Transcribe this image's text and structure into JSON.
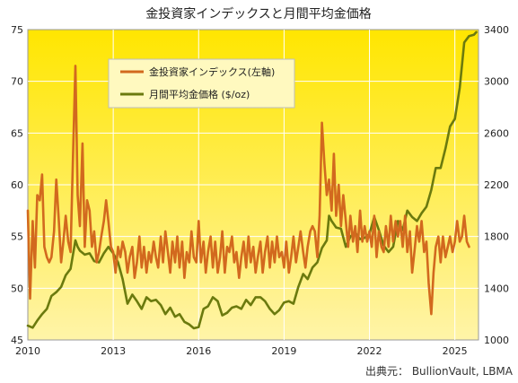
{
  "chart_data": {
    "type": "line",
    "title": "金投資家インデックスと月間平均金価格",
    "source": "出典元：  BullionVault, LBMA",
    "x_range": [
      2010.0,
      2025.83
    ],
    "x_ticks": [
      2010,
      2013,
      2016,
      2019,
      2022,
      2025
    ],
    "ylim_left": [
      45,
      75
    ],
    "yticks_left": [
      45,
      50,
      55,
      60,
      65,
      70,
      75
    ],
    "ylim_right": [
      1000,
      3400
    ],
    "yticks_right": [
      1000,
      1400,
      1800,
      2200,
      2600,
      3000,
      3400
    ],
    "legend_position": "top-left (inside)",
    "grid": true,
    "colors": {
      "index": "#D2691E",
      "gold": "#6B7A0E",
      "background_top": "#FFE800",
      "background_bottom": "#FFF2A0"
    },
    "series": [
      {
        "name": "金投資家インデックス(左軸)",
        "axis": "left",
        "points": [
          [
            2010.0,
            57.5
          ],
          [
            2010.08,
            49.0
          ],
          [
            2010.17,
            56.5
          ],
          [
            2010.25,
            52.0
          ],
          [
            2010.33,
            59.0
          ],
          [
            2010.42,
            58.5
          ],
          [
            2010.5,
            61.0
          ],
          [
            2010.58,
            54.0
          ],
          [
            2010.67,
            53.0
          ],
          [
            2010.75,
            52.5
          ],
          [
            2010.83,
            53.0
          ],
          [
            2010.92,
            55.5
          ],
          [
            2011.0,
            60.5
          ],
          [
            2011.08,
            57.0
          ],
          [
            2011.17,
            52.5
          ],
          [
            2011.25,
            54.5
          ],
          [
            2011.33,
            57.0
          ],
          [
            2011.42,
            54.5
          ],
          [
            2011.5,
            53.5
          ],
          [
            2011.58,
            62.0
          ],
          [
            2011.67,
            71.5
          ],
          [
            2011.75,
            59.0
          ],
          [
            2011.83,
            56.0
          ],
          [
            2011.92,
            64.0
          ],
          [
            2012.0,
            54.0
          ],
          [
            2012.08,
            58.5
          ],
          [
            2012.17,
            57.5
          ],
          [
            2012.25,
            54.0
          ],
          [
            2012.33,
            55.5
          ],
          [
            2012.42,
            52.5
          ],
          [
            2012.5,
            53.5
          ],
          [
            2012.58,
            55.0
          ],
          [
            2012.67,
            56.5
          ],
          [
            2012.75,
            58.5
          ],
          [
            2012.83,
            56.5
          ],
          [
            2012.92,
            54.0
          ],
          [
            2013.0,
            53.5
          ],
          [
            2013.08,
            51.5
          ],
          [
            2013.17,
            54.0
          ],
          [
            2013.25,
            53.0
          ],
          [
            2013.33,
            54.5
          ],
          [
            2013.42,
            53.5
          ],
          [
            2013.5,
            51.5
          ],
          [
            2013.58,
            53.0
          ],
          [
            2013.67,
            54.0
          ],
          [
            2013.75,
            51.0
          ],
          [
            2013.83,
            52.5
          ],
          [
            2013.92,
            55.0
          ],
          [
            2014.0,
            52.0
          ],
          [
            2014.08,
            54.0
          ],
          [
            2014.17,
            51.5
          ],
          [
            2014.25,
            53.5
          ],
          [
            2014.33,
            52.5
          ],
          [
            2014.42,
            54.5
          ],
          [
            2014.5,
            53.0
          ],
          [
            2014.58,
            52.0
          ],
          [
            2014.67,
            55.0
          ],
          [
            2014.75,
            52.5
          ],
          [
            2014.83,
            55.5
          ],
          [
            2014.92,
            53.5
          ],
          [
            2015.0,
            51.5
          ],
          [
            2015.08,
            54.5
          ],
          [
            2015.17,
            52.5
          ],
          [
            2015.25,
            55.0
          ],
          [
            2015.33,
            52.0
          ],
          [
            2015.42,
            54.5
          ],
          [
            2015.5,
            51.0
          ],
          [
            2015.58,
            53.5
          ],
          [
            2015.67,
            52.5
          ],
          [
            2015.75,
            55.5
          ],
          [
            2015.83,
            53.0
          ],
          [
            2015.92,
            52.5
          ],
          [
            2016.0,
            56.5
          ],
          [
            2016.08,
            52.5
          ],
          [
            2016.17,
            54.5
          ],
          [
            2016.25,
            51.5
          ],
          [
            2016.33,
            53.5
          ],
          [
            2016.42,
            55.0
          ],
          [
            2016.5,
            52.0
          ],
          [
            2016.58,
            54.5
          ],
          [
            2016.67,
            51.5
          ],
          [
            2016.75,
            53.0
          ],
          [
            2016.83,
            55.5
          ],
          [
            2016.92,
            51.5
          ],
          [
            2017.0,
            54.0
          ],
          [
            2017.08,
            53.5
          ],
          [
            2017.17,
            55.0
          ],
          [
            2017.25,
            52.5
          ],
          [
            2017.33,
            53.5
          ],
          [
            2017.42,
            51.0
          ],
          [
            2017.5,
            53.0
          ],
          [
            2017.58,
            54.5
          ],
          [
            2017.67,
            52.0
          ],
          [
            2017.75,
            55.0
          ],
          [
            2017.83,
            52.5
          ],
          [
            2017.92,
            54.0
          ],
          [
            2018.0,
            51.5
          ],
          [
            2018.08,
            53.0
          ],
          [
            2018.17,
            54.5
          ],
          [
            2018.25,
            51.5
          ],
          [
            2018.33,
            53.5
          ],
          [
            2018.42,
            55.0
          ],
          [
            2018.5,
            52.0
          ],
          [
            2018.58,
            54.5
          ],
          [
            2018.67,
            52.5
          ],
          [
            2018.75,
            55.0
          ],
          [
            2018.83,
            53.0
          ],
          [
            2018.92,
            53.5
          ],
          [
            2019.0,
            52.0
          ],
          [
            2019.08,
            54.5
          ],
          [
            2019.17,
            51.5
          ],
          [
            2019.25,
            53.0
          ],
          [
            2019.33,
            55.0
          ],
          [
            2019.42,
            52.5
          ],
          [
            2019.5,
            54.0
          ],
          [
            2019.58,
            55.5
          ],
          [
            2019.67,
            53.5
          ],
          [
            2019.75,
            52.0
          ],
          [
            2019.83,
            54.0
          ],
          [
            2019.92,
            55.5
          ],
          [
            2020.0,
            56.0
          ],
          [
            2020.08,
            55.5
          ],
          [
            2020.17,
            53.0
          ],
          [
            2020.25,
            57.0
          ],
          [
            2020.33,
            66.0
          ],
          [
            2020.42,
            62.0
          ],
          [
            2020.5,
            59.0
          ],
          [
            2020.58,
            60.5
          ],
          [
            2020.67,
            57.5
          ],
          [
            2020.75,
            63.0
          ],
          [
            2020.83,
            57.0
          ],
          [
            2020.92,
            60.0
          ],
          [
            2021.0,
            56.0
          ],
          [
            2021.08,
            59.0
          ],
          [
            2021.17,
            56.5
          ],
          [
            2021.25,
            54.0
          ],
          [
            2021.33,
            57.0
          ],
          [
            2021.42,
            54.5
          ],
          [
            2021.5,
            56.0
          ],
          [
            2021.58,
            53.5
          ],
          [
            2021.67,
            57.5
          ],
          [
            2021.75,
            54.5
          ],
          [
            2021.83,
            56.0
          ],
          [
            2021.92,
            54.5
          ],
          [
            2022.0,
            55.5
          ],
          [
            2022.08,
            54.0
          ],
          [
            2022.17,
            57.0
          ],
          [
            2022.25,
            53.0
          ],
          [
            2022.33,
            55.5
          ],
          [
            2022.42,
            54.0
          ],
          [
            2022.5,
            53.5
          ],
          [
            2022.58,
            56.0
          ],
          [
            2022.67,
            54.0
          ],
          [
            2022.75,
            57.0
          ],
          [
            2022.83,
            54.5
          ],
          [
            2022.92,
            56.5
          ],
          [
            2023.0,
            55.0
          ],
          [
            2023.08,
            56.5
          ],
          [
            2023.17,
            54.0
          ],
          [
            2023.25,
            57.0
          ],
          [
            2023.33,
            53.5
          ],
          [
            2023.42,
            55.5
          ],
          [
            2023.5,
            51.5
          ],
          [
            2023.58,
            53.5
          ],
          [
            2023.67,
            56.0
          ],
          [
            2023.75,
            54.5
          ],
          [
            2023.83,
            56.5
          ],
          [
            2023.92,
            53.5
          ],
          [
            2024.0,
            54.5
          ],
          [
            2024.08,
            50.5
          ],
          [
            2024.17,
            47.5
          ],
          [
            2024.25,
            51.5
          ],
          [
            2024.33,
            54.0
          ],
          [
            2024.42,
            55.0
          ],
          [
            2024.5,
            52.5
          ],
          [
            2024.58,
            55.0
          ],
          [
            2024.67,
            53.0
          ],
          [
            2024.75,
            54.0
          ],
          [
            2024.83,
            55.0
          ],
          [
            2024.92,
            53.5
          ],
          [
            2025.0,
            54.5
          ],
          [
            2025.08,
            56.5
          ],
          [
            2025.17,
            54.5
          ],
          [
            2025.25,
            55.0
          ],
          [
            2025.33,
            57.0
          ],
          [
            2025.42,
            54.5
          ],
          [
            2025.5,
            54.0
          ]
        ]
      },
      {
        "name": "月間平均金価格 ($/oz)",
        "axis": "right",
        "points": [
          [
            2010.0,
            1110
          ],
          [
            2010.17,
            1095
          ],
          [
            2010.33,
            1150
          ],
          [
            2010.5,
            1200
          ],
          [
            2010.67,
            1240
          ],
          [
            2010.83,
            1340
          ],
          [
            2011.0,
            1370
          ],
          [
            2011.17,
            1410
          ],
          [
            2011.33,
            1500
          ],
          [
            2011.5,
            1550
          ],
          [
            2011.67,
            1770
          ],
          [
            2011.75,
            1720
          ],
          [
            2011.83,
            1690
          ],
          [
            2012.0,
            1660
          ],
          [
            2012.17,
            1670
          ],
          [
            2012.33,
            1610
          ],
          [
            2012.5,
            1600
          ],
          [
            2012.67,
            1670
          ],
          [
            2012.83,
            1720
          ],
          [
            2013.0,
            1670
          ],
          [
            2013.17,
            1600
          ],
          [
            2013.33,
            1470
          ],
          [
            2013.5,
            1280
          ],
          [
            2013.67,
            1350
          ],
          [
            2013.83,
            1300
          ],
          [
            2014.0,
            1240
          ],
          [
            2014.17,
            1330
          ],
          [
            2014.33,
            1300
          ],
          [
            2014.5,
            1310
          ],
          [
            2014.67,
            1270
          ],
          [
            2014.83,
            1200
          ],
          [
            2015.0,
            1250
          ],
          [
            2015.17,
            1180
          ],
          [
            2015.33,
            1200
          ],
          [
            2015.5,
            1140
          ],
          [
            2015.67,
            1120
          ],
          [
            2015.83,
            1090
          ],
          [
            2016.0,
            1100
          ],
          [
            2016.17,
            1240
          ],
          [
            2016.33,
            1260
          ],
          [
            2016.5,
            1330
          ],
          [
            2016.67,
            1300
          ],
          [
            2016.83,
            1190
          ],
          [
            2017.0,
            1210
          ],
          [
            2017.17,
            1250
          ],
          [
            2017.33,
            1260
          ],
          [
            2017.5,
            1240
          ],
          [
            2017.67,
            1310
          ],
          [
            2017.83,
            1270
          ],
          [
            2018.0,
            1330
          ],
          [
            2018.17,
            1330
          ],
          [
            2018.33,
            1300
          ],
          [
            2018.5,
            1240
          ],
          [
            2018.67,
            1200
          ],
          [
            2018.83,
            1230
          ],
          [
            2019.0,
            1290
          ],
          [
            2019.17,
            1300
          ],
          [
            2019.33,
            1280
          ],
          [
            2019.5,
            1410
          ],
          [
            2019.67,
            1510
          ],
          [
            2019.83,
            1470
          ],
          [
            2020.0,
            1560
          ],
          [
            2020.17,
            1600
          ],
          [
            2020.33,
            1710
          ],
          [
            2020.5,
            1770
          ],
          [
            2020.58,
            1960
          ],
          [
            2020.67,
            1920
          ],
          [
            2020.83,
            1870
          ],
          [
            2021.0,
            1860
          ],
          [
            2021.17,
            1720
          ],
          [
            2021.33,
            1800
          ],
          [
            2021.5,
            1830
          ],
          [
            2021.67,
            1780
          ],
          [
            2021.83,
            1790
          ],
          [
            2022.0,
            1820
          ],
          [
            2022.17,
            1950
          ],
          [
            2022.33,
            1850
          ],
          [
            2022.5,
            1730
          ],
          [
            2022.67,
            1680
          ],
          [
            2022.83,
            1720
          ],
          [
            2023.0,
            1920
          ],
          [
            2023.17,
            1850
          ],
          [
            2023.33,
            2000
          ],
          [
            2023.5,
            1950
          ],
          [
            2023.67,
            1920
          ],
          [
            2023.83,
            1980
          ],
          [
            2024.0,
            2030
          ],
          [
            2024.17,
            2160
          ],
          [
            2024.33,
            2330
          ],
          [
            2024.5,
            2330
          ],
          [
            2024.67,
            2480
          ],
          [
            2024.83,
            2650
          ],
          [
            2025.0,
            2710
          ],
          [
            2025.17,
            2950
          ],
          [
            2025.33,
            3300
          ],
          [
            2025.5,
            3350
          ],
          [
            2025.67,
            3360
          ],
          [
            2025.75,
            3380
          ]
        ]
      }
    ]
  }
}
